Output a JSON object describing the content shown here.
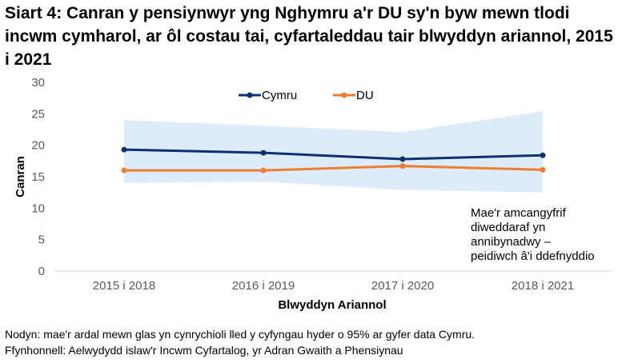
{
  "chart_data": {
    "type": "line",
    "title": "Siart 4: Canran y pensiynwyr yng Nghymru a'r DU sy'n byw mewn tlodi incwm cymharol, ar ôl costau tai, cyfartaleddau tair blwyddyn ariannol, 2015 i 2021",
    "xlabel": "Blwyddyn Ariannol",
    "ylabel": "Canran",
    "categories": [
      "2015 i 2018",
      "2016 i 2019",
      "2017 i 2020",
      "2018 i 2021"
    ],
    "ylim": [
      0,
      30
    ],
    "yticks": [
      0,
      5,
      10,
      15,
      20,
      25,
      30
    ],
    "grid": false,
    "legend_position": "top-center",
    "series": [
      {
        "name": "Cymru",
        "color": "#0B3170",
        "values": [
          19.3,
          18.8,
          17.8,
          18.4
        ]
      },
      {
        "name": "DU",
        "color": "#ED7D31",
        "values": [
          16.0,
          16.0,
          16.7,
          16.1
        ]
      }
    ],
    "confidence_band": {
      "color": "#DDEBFB",
      "upper": [
        24.0,
        23.1,
        22.1,
        25.4
      ],
      "lower": [
        14.0,
        14.2,
        12.9,
        12.5
      ]
    },
    "annotation": [
      "Mae'r amcangyfrif",
      "diweddaraf yn",
      "annibynadwy –",
      "peidiwch â'i ddefnyddio"
    ]
  },
  "footnotes": {
    "note": "Nodyn: mae'r ardal mewn glas yn cynrychioli lled y cyfyngau hyder o 95% ar gyfer data Cymru.",
    "source": "Ffynhonnell: Aelwydydd islaw'r Incwm Cyfartalog, yr Adran Gwaith a Phensiynau"
  }
}
